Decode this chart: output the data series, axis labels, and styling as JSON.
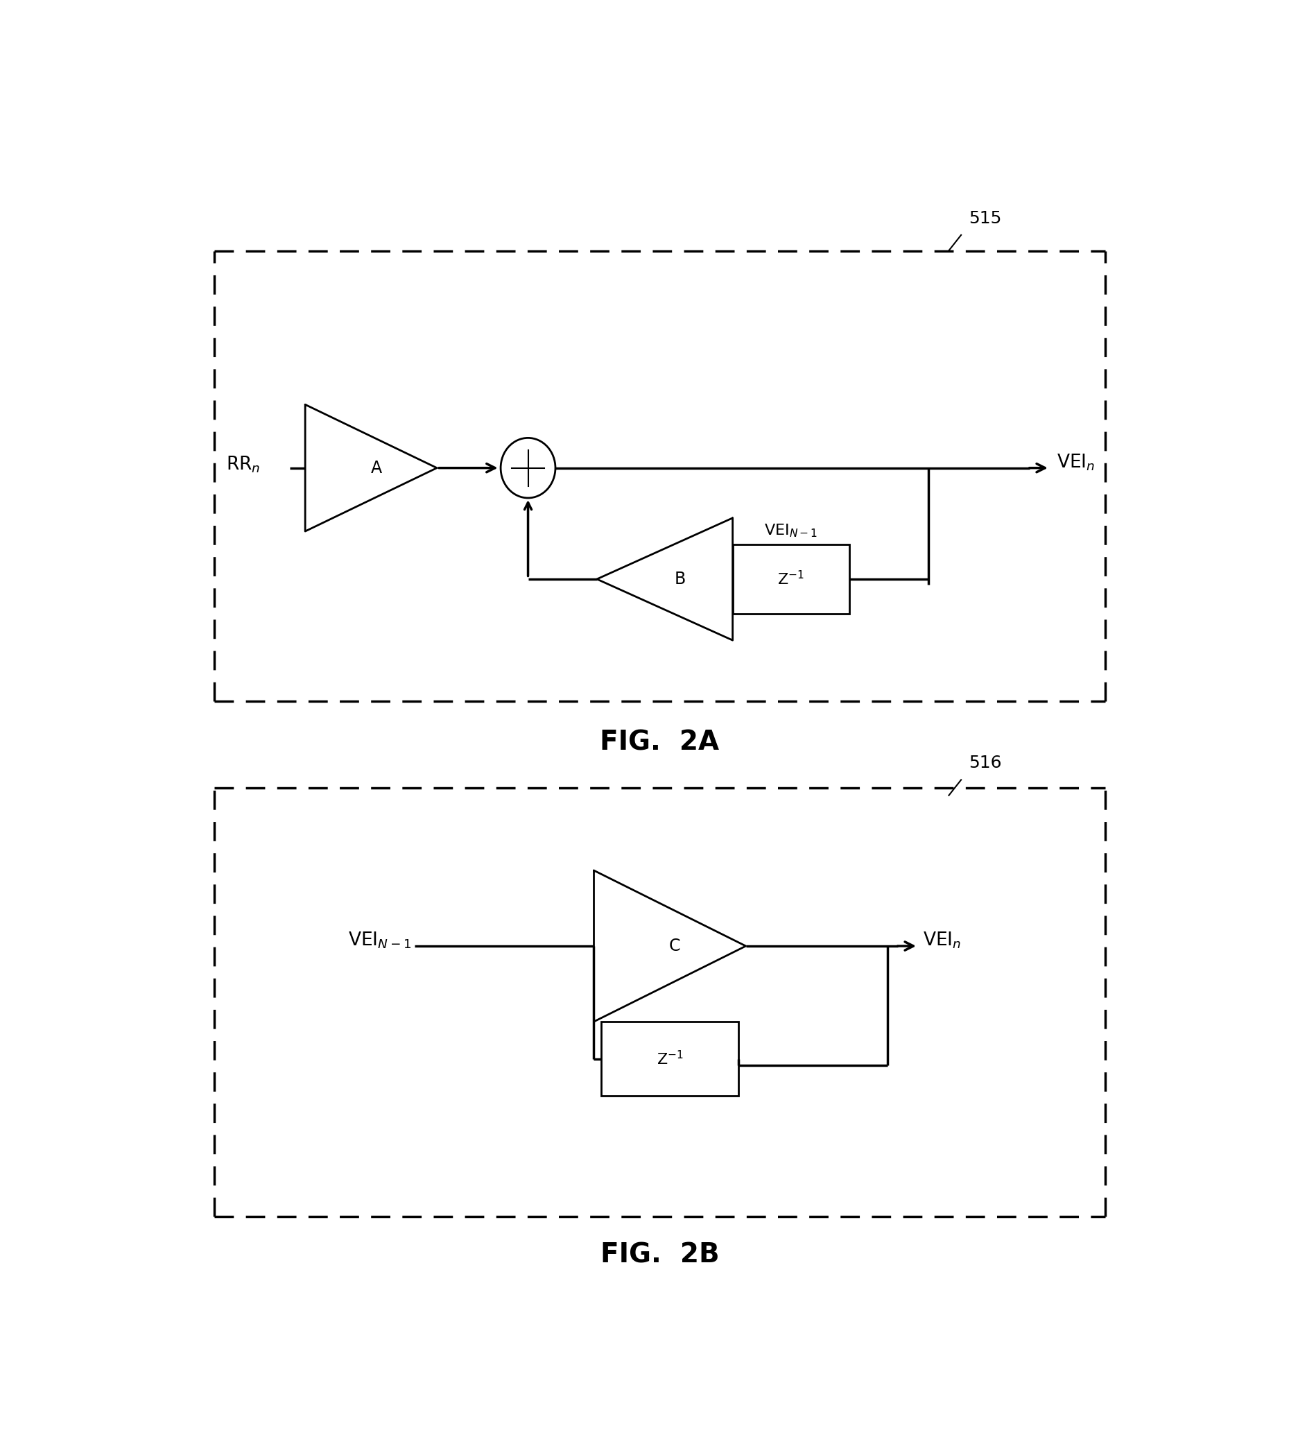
{
  "fig_width": 18.85,
  "fig_height": 20.82,
  "bg_color": "#ffffff",
  "line_color": "#000000",
  "fig2a_label": "FIG.  2A",
  "fig2b_label": "FIG.  2B",
  "label_515": "515",
  "label_516": "516"
}
